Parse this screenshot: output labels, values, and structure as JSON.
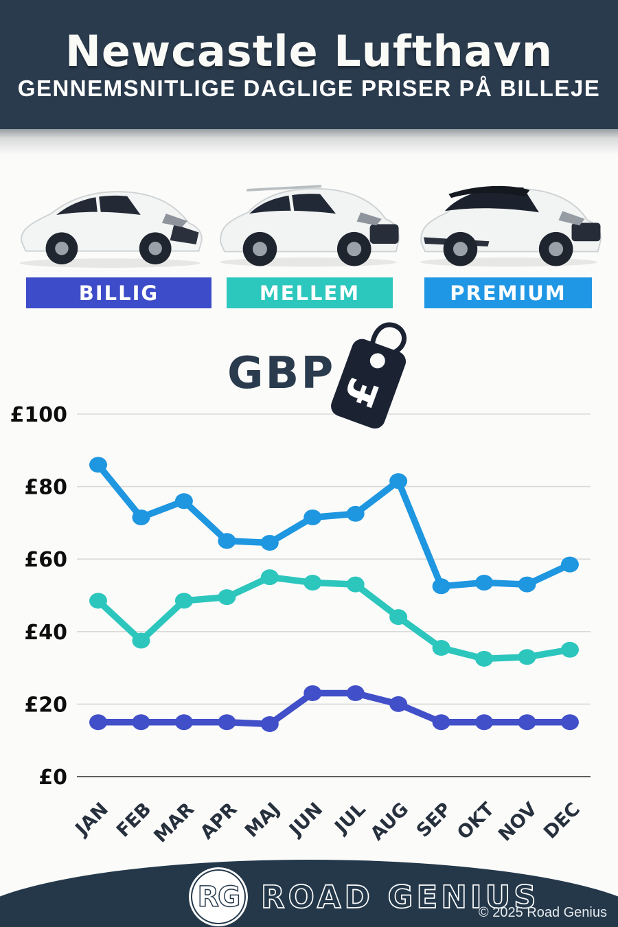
{
  "header": {
    "title": "Newcastle Lufthavn",
    "subtitle": "GENNEMSNITLIGE DAGLIGE PRISER PÅ BILLEJE"
  },
  "tiers": [
    {
      "label": "BILLIG",
      "color": "#3d4cc9"
    },
    {
      "label": "MELLEM",
      "color": "#2cc7bd"
    },
    {
      "label": "PREMIUM",
      "color": "#2097e4"
    }
  ],
  "currency": {
    "code": "GBP",
    "symbol": "£"
  },
  "chart_data": {
    "type": "line",
    "title": "",
    "categories": [
      "JAN",
      "FEB",
      "MAR",
      "APR",
      "MAJ",
      "JUN",
      "JUL",
      "AUG",
      "SEP",
      "OKT",
      "NOV",
      "DEC"
    ],
    "series": [
      {
        "name": "PREMIUM",
        "color": "#1e96e0",
        "values": [
          86,
          71.5,
          76,
          65,
          64.5,
          71.5,
          72.5,
          81.5,
          52.5,
          53.5,
          53,
          58.5
        ]
      },
      {
        "name": "MELLEM",
        "color": "#2cc6bd",
        "values": [
          48.5,
          37.5,
          48.5,
          49.5,
          55,
          53.5,
          53,
          44,
          35.5,
          32.5,
          33,
          35
        ]
      },
      {
        "name": "BILLIG",
        "color": "#4150c8",
        "values": [
          15,
          15,
          15,
          15,
          14.5,
          23,
          23,
          20,
          15,
          15,
          15,
          15
        ]
      }
    ],
    "yticks": [
      0,
      20,
      40,
      60,
      80,
      100
    ],
    "ylim": [
      0,
      100
    ],
    "ylabel_prefix": "£",
    "grid": true,
    "legend": "none",
    "x_label_rotation": -45
  },
  "footer": {
    "logo_initials": "RG",
    "brand": "ROAD GENIUS",
    "copyright": "© 2025 Road Genius"
  }
}
